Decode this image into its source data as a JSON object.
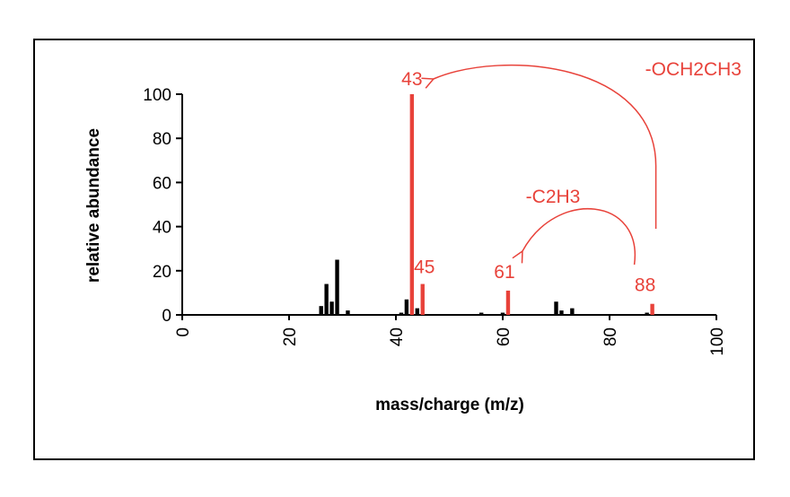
{
  "chart_data": {
    "type": "bar",
    "title": "",
    "xlabel": "mass/charge (m/z)",
    "ylabel": "relative abundance",
    "xlim": [
      0,
      100
    ],
    "ylim": [
      0,
      100
    ],
    "xticks": [
      "0",
      "20",
      "40",
      "60",
      "80",
      "100"
    ],
    "yticks": [
      "0",
      "20",
      "40",
      "60",
      "80",
      "100"
    ],
    "grid": false,
    "legend": "none",
    "colors": {
      "minor": "#000000",
      "major": "#e8423a"
    },
    "series": [
      {
        "color": "#000000",
        "x": [
          26,
          27,
          28,
          29,
          31,
          41,
          42,
          44,
          56,
          60,
          70,
          71,
          73,
          87
        ],
        "y": [
          4,
          14,
          6,
          25,
          2,
          1,
          7,
          3,
          1,
          1,
          6,
          2,
          3,
          1
        ]
      },
      {
        "color": "#e8423a",
        "x": [
          43,
          45,
          61,
          88
        ],
        "y": [
          100,
          14,
          11,
          5
        ]
      }
    ],
    "peak_labels": [
      {
        "x": 43,
        "text": "43"
      },
      {
        "x": 45,
        "text": "45"
      },
      {
        "x": 61,
        "text": "61"
      },
      {
        "x": 88,
        "text": "88"
      }
    ],
    "annotations": [
      {
        "text": "-OCH2CH3",
        "from": 88,
        "to": 43
      },
      {
        "text": "-C2H3",
        "from": 88,
        "to": 61
      }
    ]
  }
}
